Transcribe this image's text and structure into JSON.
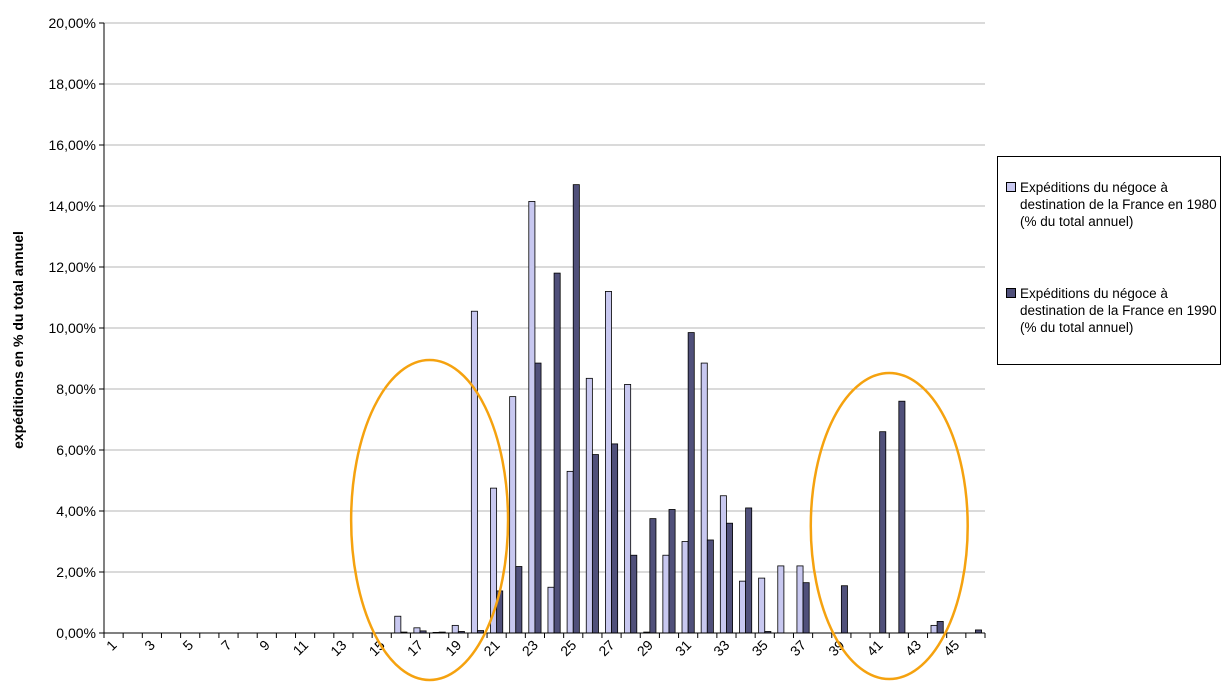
{
  "chart_data": {
    "type": "bar",
    "ylabel": "expéditions en % du total annuel",
    "xlabel": "",
    "ylim": [
      0,
      20
    ],
    "y_ticks": [
      "0,00%",
      "2,00%",
      "4,00%",
      "6,00%",
      "8,00%",
      "10,00%",
      "12,00%",
      "14,00%",
      "16,00%",
      "18,00%",
      "20,00%"
    ],
    "categories": [
      1,
      2,
      3,
      4,
      5,
      6,
      7,
      8,
      9,
      10,
      11,
      12,
      13,
      14,
      15,
      16,
      17,
      18,
      19,
      20,
      21,
      22,
      23,
      24,
      25,
      26,
      27,
      28,
      29,
      30,
      31,
      32,
      33,
      34,
      35,
      36,
      37,
      38,
      39,
      40,
      41,
      42,
      43,
      44,
      45,
      46
    ],
    "x_tick_labels": [
      "1",
      "3",
      "5",
      "7",
      "9",
      "11",
      "13",
      "15",
      "17",
      "19",
      "21",
      "23",
      "25",
      "27",
      "29",
      "31",
      "33",
      "35",
      "37",
      "39",
      "41",
      "43",
      "45"
    ],
    "grid": "horizontal",
    "legend_position": "right",
    "series": [
      {
        "name": "Expéditions du négoce à destination de la France en 1980 (% du total annuel)",
        "color": "#c8c8f0",
        "values": [
          0,
          0,
          0,
          0,
          0,
          0,
          0,
          0,
          0,
          0,
          0,
          0,
          0,
          0,
          0,
          0.55,
          0.17,
          0.02,
          0.25,
          10.55,
          4.75,
          7.75,
          14.15,
          1.5,
          5.3,
          8.35,
          11.2,
          8.15,
          0.03,
          2.55,
          3.0,
          8.85,
          4.5,
          1.7,
          1.8,
          2.2,
          2.2,
          0,
          0,
          0,
          0,
          0,
          0,
          0.25,
          0,
          0
        ]
      },
      {
        "name": "Expéditions du négoce à destination de la France en 1990 (% du total annuel)",
        "color": "#50507a",
        "values": [
          0,
          0,
          0,
          0,
          0,
          0,
          0,
          0,
          0,
          0,
          0,
          0,
          0,
          0,
          0,
          0.03,
          0.07,
          0.03,
          0.05,
          0.08,
          1.38,
          2.18,
          8.85,
          11.8,
          14.7,
          5.85,
          6.2,
          2.55,
          3.75,
          4.05,
          9.85,
          3.05,
          3.6,
          4.1,
          0.05,
          0,
          1.65,
          0,
          1.55,
          0,
          6.6,
          7.6,
          0,
          0.38,
          0,
          0.1
        ]
      }
    ],
    "annotations": [
      {
        "type": "ellipse",
        "color": "#f5a20f",
        "around_categories": [
          15,
          20
        ]
      },
      {
        "type": "ellipse",
        "color": "#f5a20f",
        "around_categories": [
          39,
          44
        ]
      }
    ]
  }
}
